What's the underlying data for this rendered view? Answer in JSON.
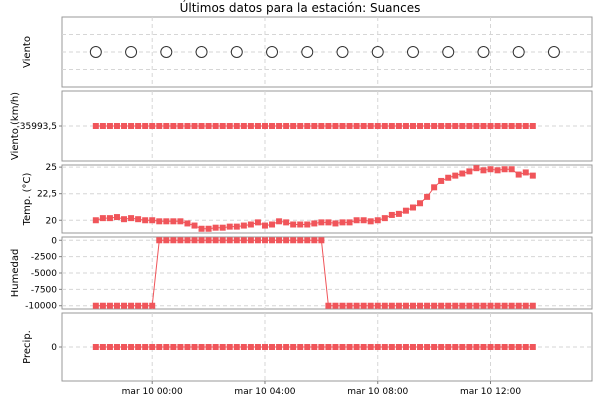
{
  "chart_data": {
    "type": "line",
    "title": "Últimos datos para la estación: Suances",
    "x_tick_labels": [
      "mar 10 00:00",
      "mar 10 04:00",
      "mar 10 08:00",
      "mar 10 12:00"
    ],
    "x_tick_hours": [
      0,
      4,
      8,
      12
    ],
    "x_range_hours": [
      -3.2,
      15.6
    ],
    "panels": [
      {
        "name": "Viento (dirección)",
        "ylabel": "Viento",
        "marker": "circle",
        "color": "#333333",
        "y_ticks": [],
        "x_hours": [
          -2.0,
          -0.75,
          0.5,
          1.75,
          3.0,
          4.25,
          5.5,
          6.75,
          8.0,
          9.25,
          10.5,
          11.75,
          13.0,
          14.25
        ],
        "values": [
          0,
          0,
          0,
          0,
          0,
          0,
          0,
          0,
          0,
          0,
          0,
          0,
          0,
          0
        ],
        "ylim": [
          -1,
          1
        ]
      },
      {
        "name": "Viento (km/h)",
        "ylabel": "Viento (km/h)",
        "marker": "square",
        "color": "#f0555a",
        "y_ticks": [
          {
            "value": -35993.5,
            "label": "-35993,5"
          }
        ],
        "x_start": -2.0,
        "x_step": 0.25,
        "count": 63,
        "constant": -35993.5,
        "ylim": [
          -35994.2,
          -35992.8
        ]
      },
      {
        "name": "Temperatura",
        "ylabel": "Temp. (°C)",
        "marker": "square",
        "color": "#f0555a",
        "y_ticks": [
          {
            "value": 20,
            "label": "20"
          },
          {
            "value": 22.5,
            "label": "22,5"
          },
          {
            "value": 25,
            "label": "25"
          }
        ],
        "x_start": -2.0,
        "x_step": 0.25,
        "count": 63,
        "values": [
          20.0,
          20.2,
          20.2,
          20.3,
          20.1,
          20.2,
          20.1,
          20.0,
          20.0,
          19.9,
          19.9,
          19.9,
          19.9,
          19.7,
          19.5,
          19.2,
          19.2,
          19.3,
          19.3,
          19.4,
          19.4,
          19.5,
          19.6,
          19.8,
          19.5,
          19.6,
          19.9,
          19.8,
          19.6,
          19.6,
          19.6,
          19.7,
          19.8,
          19.8,
          19.7,
          19.8,
          19.8,
          20.0,
          20.0,
          19.9,
          20.0,
          20.2,
          20.5,
          20.6,
          20.9,
          21.2,
          21.6,
          22.2,
          23.1,
          23.7,
          24.0,
          24.2,
          24.4,
          24.6,
          24.9,
          24.7,
          24.8,
          24.7,
          24.8,
          24.8,
          24.3,
          24.5,
          24.2
        ],
        "ylim": [
          18.8,
          25.2
        ]
      },
      {
        "name": "Humedad",
        "ylabel": "Humedad",
        "marker": "square",
        "color": "#f0555a",
        "y_ticks": [
          {
            "value": 0,
            "label": "0"
          },
          {
            "value": -2500,
            "label": "-2500"
          },
          {
            "value": -5000,
            "label": "-5000"
          },
          {
            "value": -7500,
            "label": "-7500"
          },
          {
            "value": -10000,
            "label": "-10000"
          }
        ],
        "x_start": -2.0,
        "x_step": 0.25,
        "count": 63,
        "values": [
          -10000,
          -10000,
          -10000,
          -10000,
          -10000,
          -10000,
          -10000,
          -10000,
          -10000,
          0,
          0,
          0,
          0,
          0,
          0,
          0,
          0,
          0,
          0,
          0,
          0,
          0,
          0,
          0,
          0,
          0,
          0,
          0,
          0,
          0,
          0,
          0,
          0,
          -10000,
          -10000,
          -10000,
          -10000,
          -10000,
          -10000,
          -10000,
          -10000,
          -10000,
          -10000,
          -10000,
          -10000,
          -10000,
          -10000,
          -10000,
          -10000,
          -10000,
          -10000,
          -10000,
          -10000,
          -10000,
          -10000,
          -10000,
          -10000,
          -10000,
          -10000,
          -10000,
          -10000,
          -10000,
          -10000
        ],
        "ylim": [
          -10500,
          500
        ]
      },
      {
        "name": "Precipitación",
        "ylabel": "Precip.",
        "marker": "square",
        "color": "#f0555a",
        "y_ticks": [
          {
            "value": 0,
            "label": "0"
          }
        ],
        "x_start": -2.0,
        "x_step": 0.25,
        "count": 63,
        "constant": 0,
        "ylim": [
          -1,
          1
        ]
      }
    ],
    "grid": true
  }
}
